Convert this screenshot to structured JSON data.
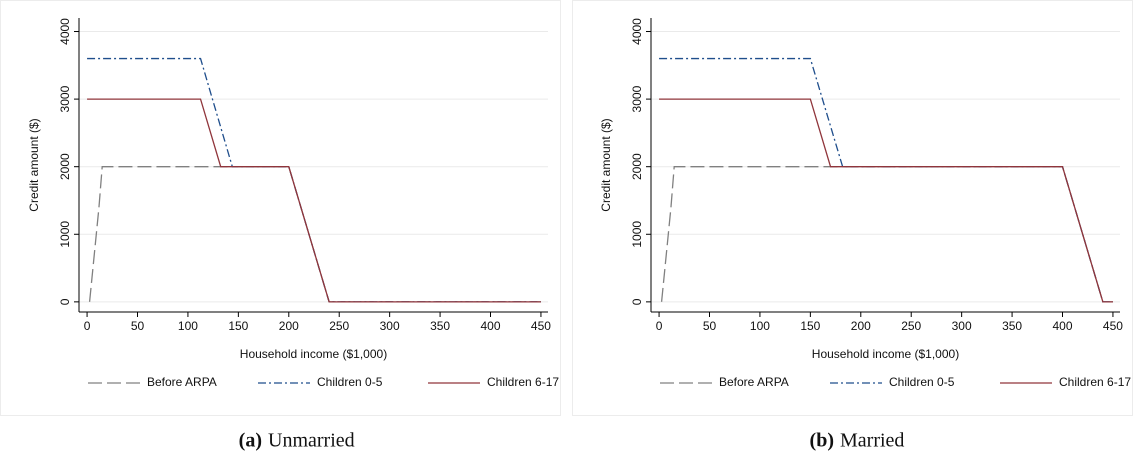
{
  "chart_data": [
    {
      "type": "line",
      "xlabel": "Household income ($1,000)",
      "ylabel": "Credit amount ($)",
      "caption_label": "(a)",
      "caption": "Unmarried",
      "xlim": [
        -8,
        457
      ],
      "ylim": [
        -150,
        4200
      ],
      "xticks": [
        0,
        50,
        100,
        150,
        200,
        250,
        300,
        350,
        400,
        450
      ],
      "yticks": [
        0,
        1000,
        2000,
        3000,
        4000
      ],
      "grid": true,
      "series": [
        {
          "name": "Before ARPA",
          "color": "#808080",
          "dash": "long-dash",
          "x": [
            2.5,
            11.8,
            15,
            200,
            240,
            450
          ],
          "values": [
            0,
            1400,
            2000,
            2000,
            0,
            0
          ]
        },
        {
          "name": "Children 0-5",
          "color": "#1f4e8c",
          "dash": "dash-dot",
          "x": [
            0,
            112.5,
            144,
            200,
            240,
            450
          ],
          "values": [
            3600,
            3600,
            2000,
            2000,
            0,
            0
          ]
        },
        {
          "name": "Children 6-17",
          "color": "#90353b",
          "dash": "solid",
          "x": [
            0,
            112.5,
            132.5,
            200,
            240,
            450
          ],
          "values": [
            3000,
            3000,
            2000,
            2000,
            0,
            0
          ]
        }
      ]
    },
    {
      "type": "line",
      "xlabel": "Household income ($1,000)",
      "ylabel": "Credit amount ($)",
      "caption_label": "(b)",
      "caption": "Married",
      "xlim": [
        -8,
        457
      ],
      "ylim": [
        -150,
        4200
      ],
      "xticks": [
        0,
        50,
        100,
        150,
        200,
        250,
        300,
        350,
        400,
        450
      ],
      "yticks": [
        0,
        1000,
        2000,
        3000,
        4000
      ],
      "grid": true,
      "series": [
        {
          "name": "Before ARPA",
          "color": "#808080",
          "dash": "long-dash",
          "x": [
            2.5,
            11.8,
            15,
            400,
            440,
            450
          ],
          "values": [
            0,
            1400,
            2000,
            2000,
            0,
            0
          ]
        },
        {
          "name": "Children 0-5",
          "color": "#1f4e8c",
          "dash": "dash-dot",
          "x": [
            0,
            150,
            182,
            400,
            440,
            450
          ],
          "values": [
            3600,
            3600,
            2000,
            2000,
            0,
            0
          ]
        },
        {
          "name": "Children 6-17",
          "color": "#90353b",
          "dash": "solid",
          "x": [
            0,
            150,
            170,
            400,
            440,
            450
          ],
          "values": [
            3000,
            3000,
            2000,
            2000,
            0,
            0
          ]
        }
      ]
    }
  ]
}
